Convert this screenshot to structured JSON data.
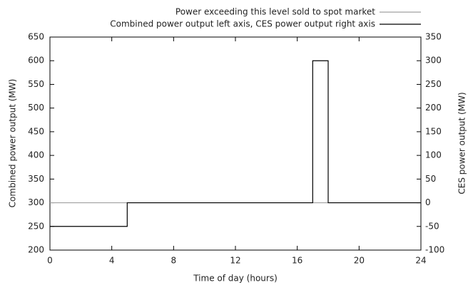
{
  "chart_data": {
    "type": "line",
    "xlabel": "Time of day (hours)",
    "ylabel": "Combined power output (MW)",
    "y2label": "CES power output (MW)",
    "xlim": [
      0,
      24
    ],
    "xticks": [
      0,
      4,
      8,
      12,
      16,
      20,
      24
    ],
    "ylim": [
      200,
      650
    ],
    "yticks": [
      200,
      250,
      300,
      350,
      400,
      450,
      500,
      550,
      600,
      650
    ],
    "y2lim": [
      -100,
      350
    ],
    "y2ticks": [
      -100,
      -50,
      0,
      50,
      100,
      150,
      200,
      250,
      300,
      350
    ],
    "legend": "top-right",
    "series": [
      {
        "name": "Power exceeding this level sold to spot market",
        "color": "#a0a0a0",
        "x": [
          0,
          24
        ],
        "values": [
          300,
          300
        ]
      },
      {
        "name": "Combined power output left axis, CES power output right axis",
        "color": "#000000",
        "x": [
          0,
          5,
          5,
          17,
          17,
          18,
          18,
          24
        ],
        "values": [
          250,
          250,
          300,
          300,
          600,
          600,
          300,
          300
        ]
      }
    ]
  }
}
